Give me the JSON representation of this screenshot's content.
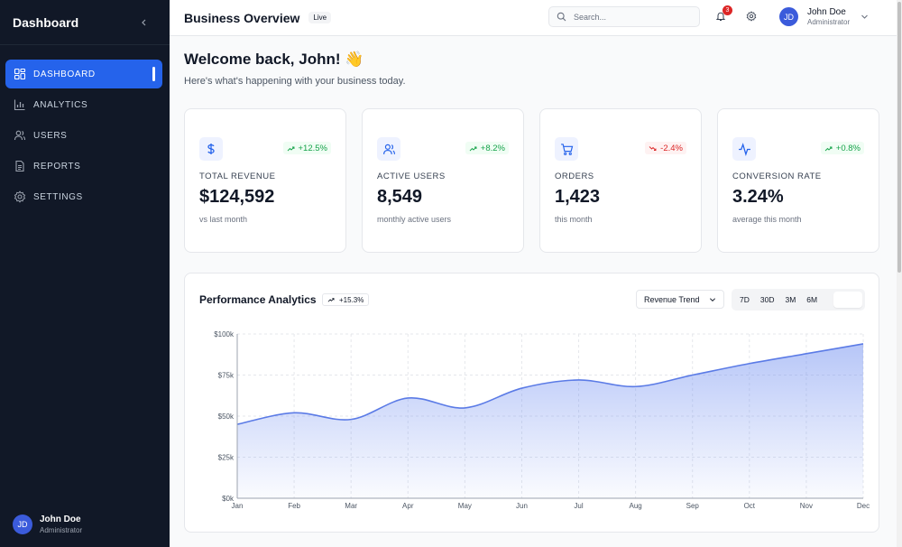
{
  "sidebar": {
    "title": "Dashboard",
    "items": [
      {
        "label": "DASHBOARD",
        "icon": "grid-icon",
        "active": true
      },
      {
        "label": "ANALYTICS",
        "icon": "bar-chart-icon"
      },
      {
        "label": "USERS",
        "icon": "users-icon"
      },
      {
        "label": "REPORTS",
        "icon": "document-icon"
      },
      {
        "label": "SETTINGS",
        "icon": "gear-icon"
      }
    ],
    "user": {
      "initials": "JD",
      "name": "John Doe",
      "role": "Administrator"
    }
  },
  "header": {
    "title": "Business Overview",
    "badge": "Live",
    "search_placeholder": "Search...",
    "notifications": "3",
    "user": {
      "initials": "JD",
      "name": "John Doe",
      "role": "Administrator"
    }
  },
  "welcome": {
    "title": "Welcome back, John! 👋",
    "subtitle": "Here's what's happening with your business today."
  },
  "cards": [
    {
      "label": "TOTAL REVENUE",
      "value": "$124,592",
      "note": "vs last month",
      "trend": "+12.5%",
      "direction": "up",
      "icon": "dollar-icon"
    },
    {
      "label": "ACTIVE USERS",
      "value": "8,549",
      "note": "monthly active users",
      "trend": "+8.2%",
      "direction": "up",
      "icon": "users-icon"
    },
    {
      "label": "ORDERS",
      "value": "1,423",
      "note": "this month",
      "trend": "-2.4%",
      "direction": "down",
      "icon": "cart-icon"
    },
    {
      "label": "CONVERSION RATE",
      "value": "3.24%",
      "note": "average this month",
      "trend": "+0.8%",
      "direction": "up",
      "icon": "activity-icon"
    }
  ],
  "performance": {
    "title": "Performance Analytics",
    "badge": "+15.3%",
    "select_value": "Revenue Trend",
    "ranges": [
      "7D",
      "30D",
      "3M",
      "6M"
    ]
  },
  "colors": {
    "accent": "#2563eb",
    "sidebar": "#111827",
    "up": "#16a34a",
    "down": "#dc2626"
  },
  "chart_data": {
    "type": "area",
    "title": "Performance Analytics",
    "categories": [
      "Jan",
      "Feb",
      "Mar",
      "Apr",
      "May",
      "Jun",
      "Jul",
      "Aug",
      "Sep",
      "Oct",
      "Nov",
      "Dec"
    ],
    "series": [
      {
        "name": "Revenue Trend",
        "values": [
          45000,
          52000,
          48000,
          61000,
          55000,
          67000,
          72000,
          68000,
          75000,
          82000,
          88000,
          94000
        ]
      }
    ],
    "yticks": [
      "$0k",
      "$25k",
      "$50k",
      "$75k",
      "$100k"
    ],
    "ylim": [
      0,
      100000
    ],
    "grid": true
  }
}
